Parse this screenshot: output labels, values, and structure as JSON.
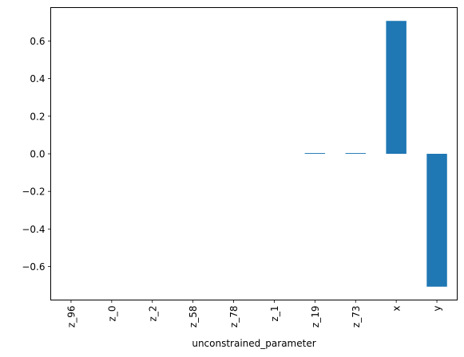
{
  "chart_data": {
    "type": "bar",
    "categories": [
      "z_96",
      "z_0",
      "z_2",
      "z_58",
      "z_78",
      "z_1",
      "z_19",
      "z_73",
      "x",
      "y"
    ],
    "values": [
      0.0,
      0.0,
      0.0,
      0.0,
      0.0,
      0.0,
      0.004,
      0.004,
      0.707,
      -0.707
    ],
    "title": "",
    "xlabel": "unconstrained_parameter",
    "ylabel": "",
    "ylim": [
      -0.778,
      0.778
    ],
    "yticks": [
      0.6,
      0.4,
      0.2,
      0.0,
      -0.2,
      -0.4,
      -0.6
    ],
    "ytick_labels": [
      "0.6",
      "0.4",
      "0.2",
      "0.0",
      "−0.2",
      "−0.4",
      "−0.6"
    ],
    "bar_color": "#1f77b4",
    "grid": false,
    "legend": "none"
  }
}
